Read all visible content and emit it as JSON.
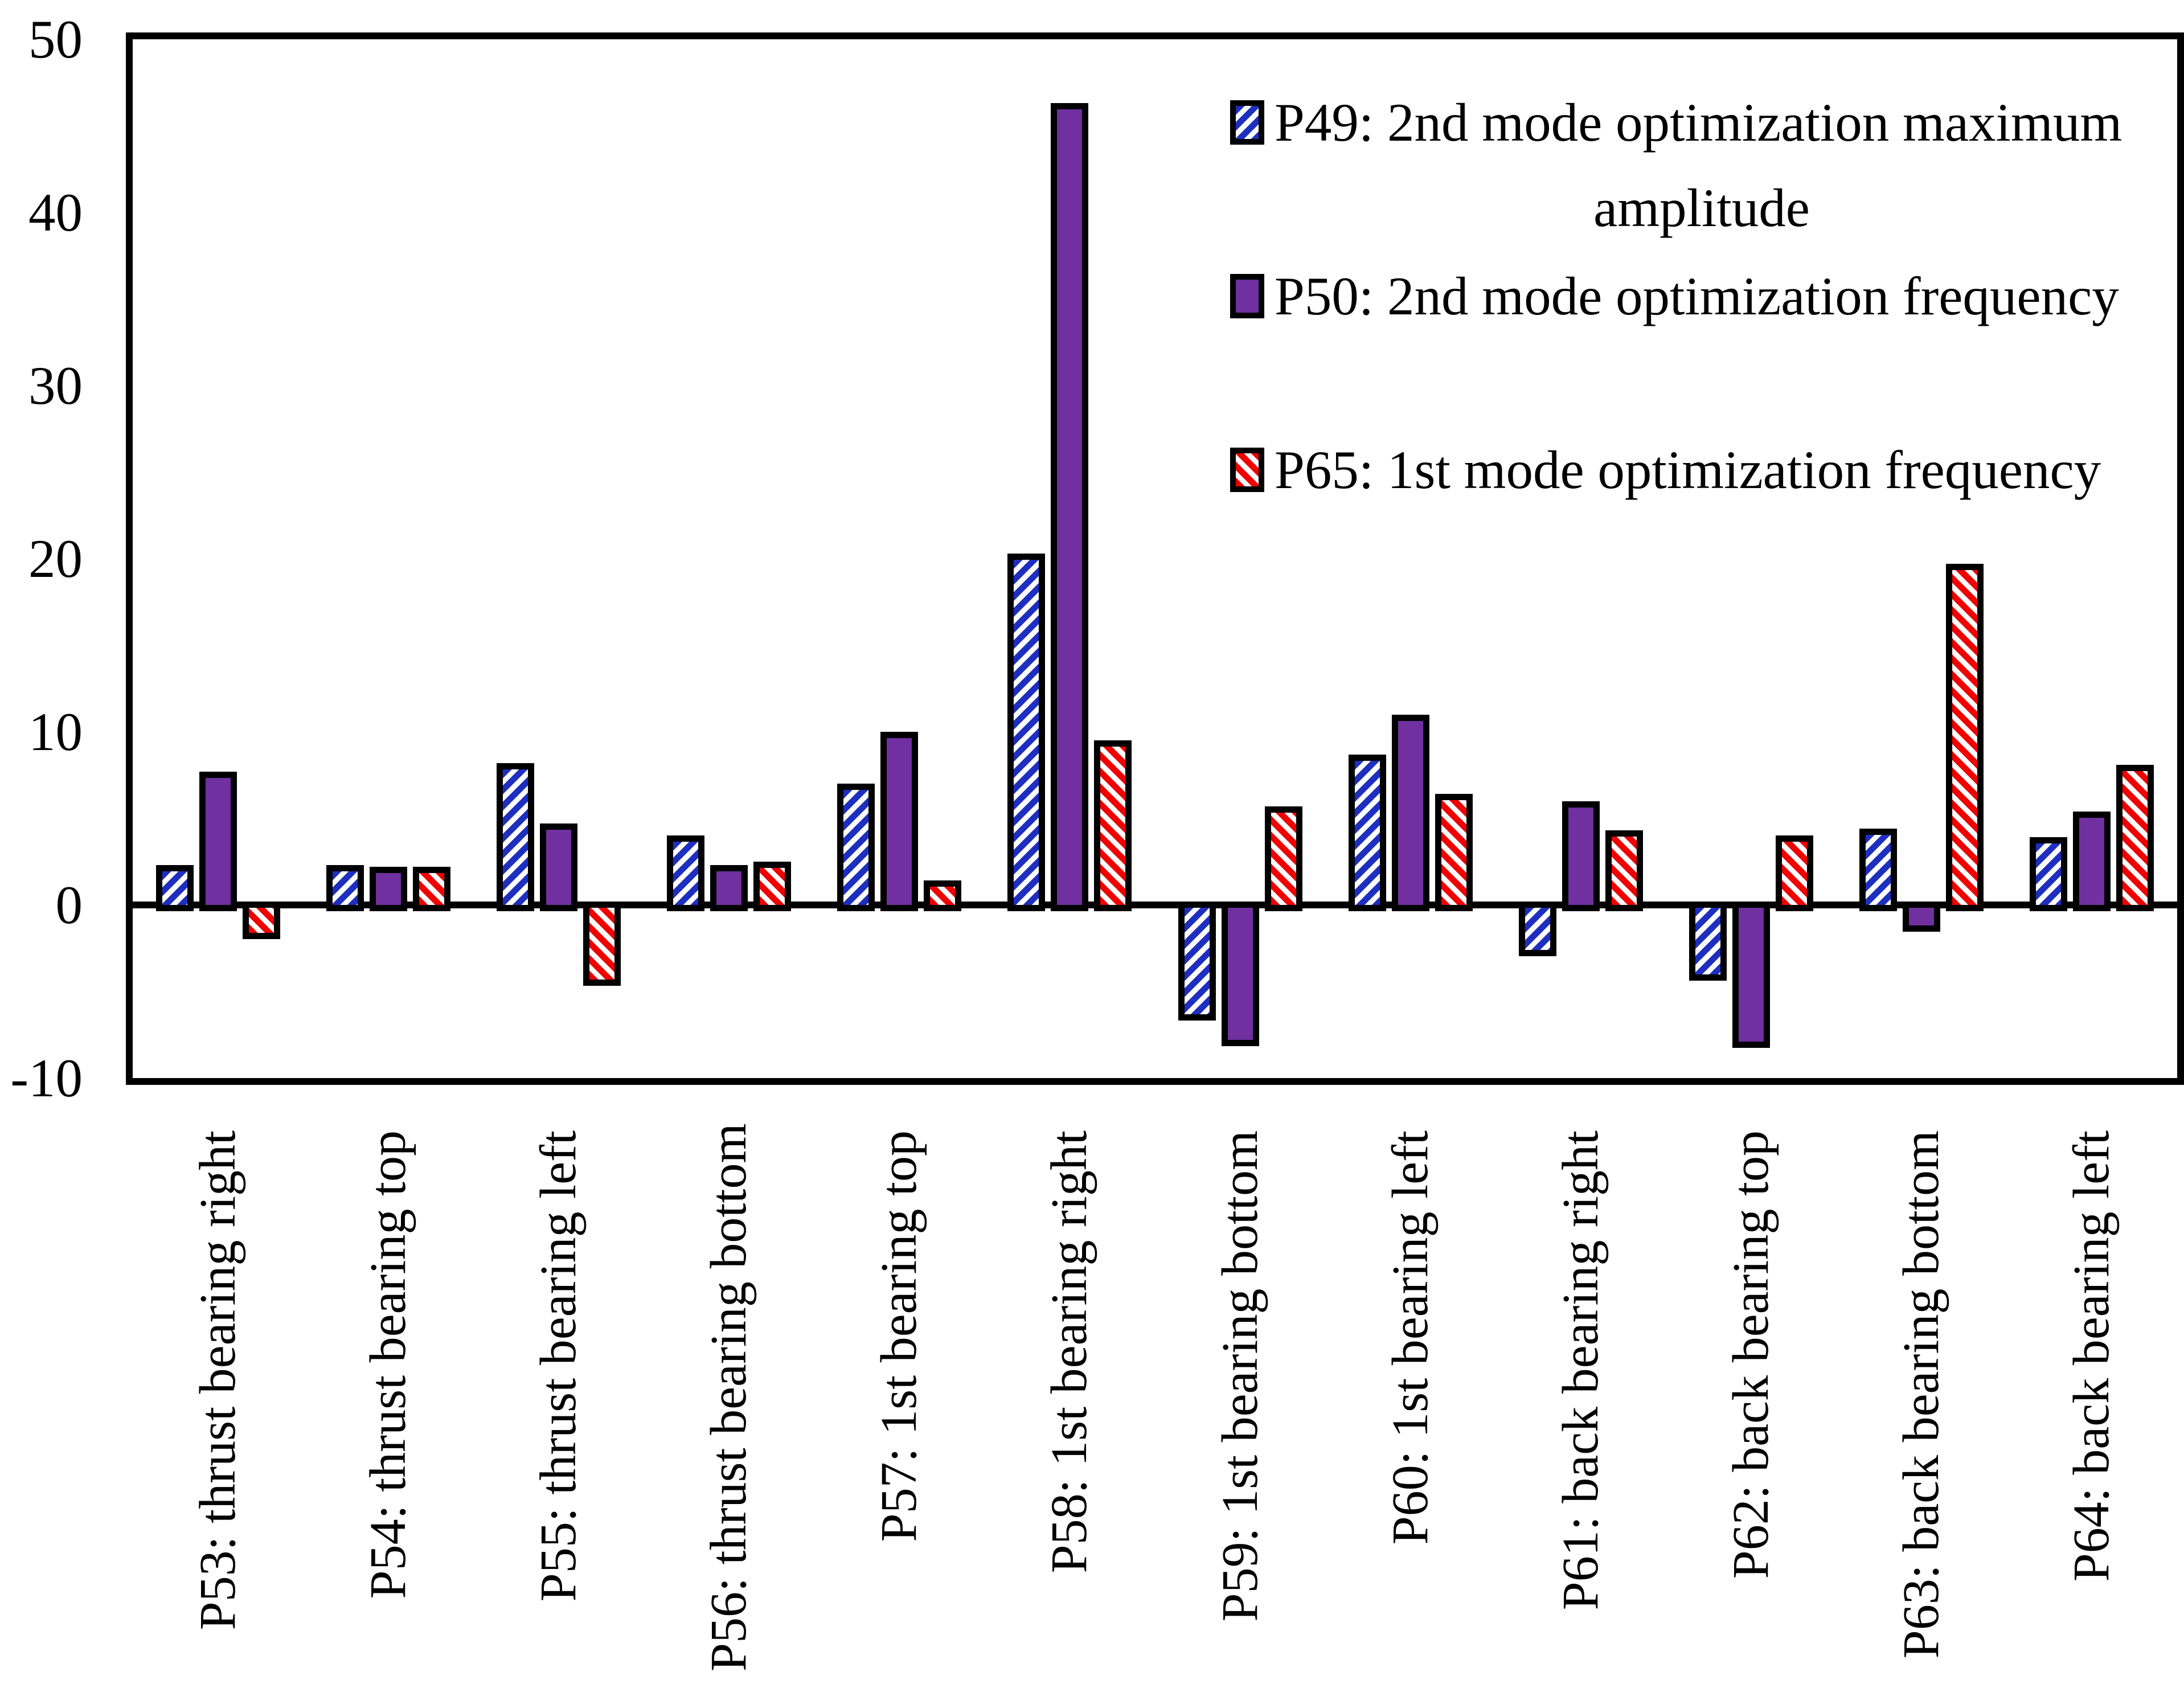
{
  "chart_data": {
    "type": "bar",
    "title": "",
    "xlabel": "",
    "ylabel": "",
    "ylim": [
      -10,
      50
    ],
    "yticks": [
      50,
      40,
      30,
      20,
      10,
      0,
      -10
    ],
    "grid": false,
    "legend_position": "top-right-inside",
    "categories": [
      "P53: thrust bearing right",
      "P54: thrust bearing top",
      "P55: thrust bearing left",
      "P56: thrust bearing bottom",
      "P57: 1st bearing top",
      "P58: 1st bearing right",
      "P59: 1st bearing bottom",
      "P60: 1st bearing left",
      "P61: back bearing right",
      "P62: back bearing top",
      "P63: back bearing bottom",
      "P64: back bearing left"
    ],
    "series": [
      {
        "name": "P49: 2nd mode optimization maximum amplitude",
        "legend_lines": [
          "P49: 2nd mode optimization maximum",
          "amplitude"
        ],
        "pattern": "diagonal-hatch-up",
        "color": "#1E2FBF",
        "values": [
          2.3,
          2.3,
          8.2,
          4.0,
          7.0,
          20.3,
          -6.3,
          8.7,
          -2.6,
          -4.0,
          4.4,
          3.9
        ]
      },
      {
        "name": "P50: 2nd mode optimization frequency",
        "legend_lines": [
          "P50: 2nd mode optimization frequency"
        ],
        "pattern": "solid",
        "color": "#7030A0",
        "values": [
          7.7,
          2.2,
          4.7,
          2.3,
          10.0,
          46.3,
          -7.8,
          11.0,
          6.0,
          -7.9,
          -1.2,
          5.4
        ]
      },
      {
        "name": "P65: 1st mode optimization frequency",
        "legend_lines": [
          "P65: 1st mode optimization frequency"
        ],
        "pattern": "diagonal-hatch-down",
        "color": "#F10000",
        "values": [
          -1.6,
          2.2,
          -4.3,
          2.5,
          1.4,
          9.5,
          5.7,
          6.4,
          4.3,
          4.0,
          19.7,
          8.1
        ]
      }
    ]
  },
  "colors": {
    "axis": "#000000",
    "background": "#ffffff",
    "hatch_background": "#ffffff"
  }
}
